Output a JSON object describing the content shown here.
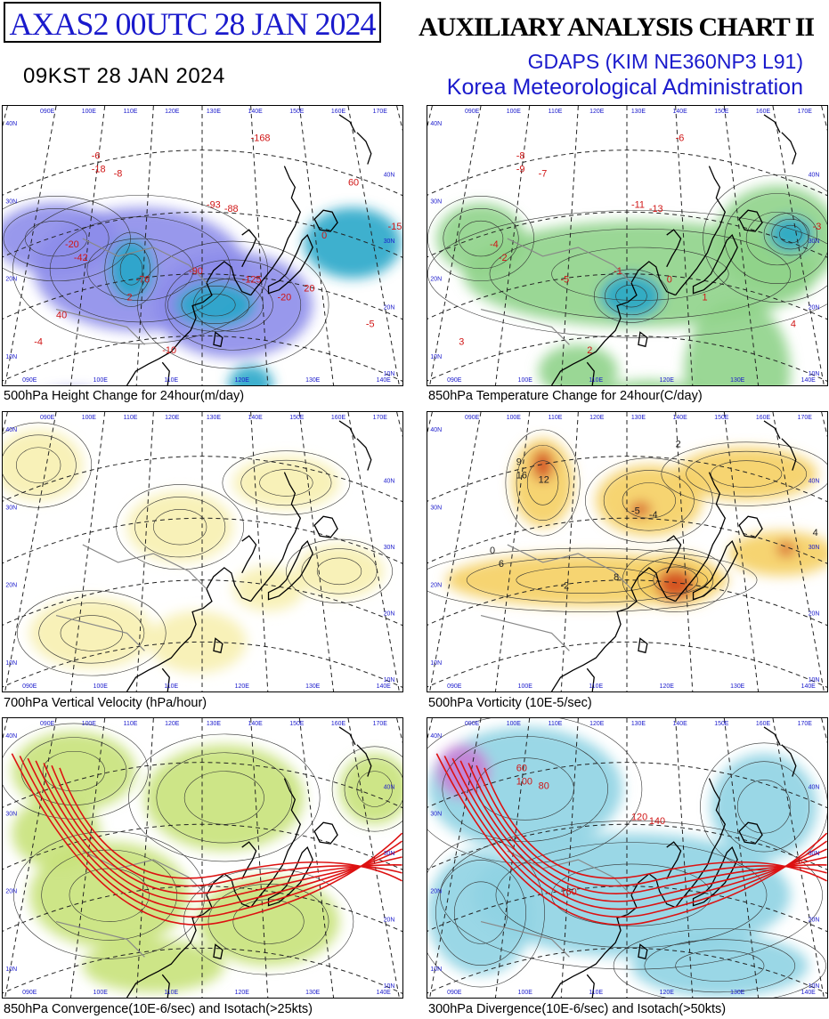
{
  "header": {
    "product_id": "AXAS2  00UTC 28 JAN 2024",
    "local_time": "09KST 28 JAN 2024",
    "chart_title": "AUXILIARY ANALYSIS CHART II",
    "model": "GDAPS (KIM NE360NP3 L91)",
    "organization": "Korea Meteorological Administration"
  },
  "panels": [
    {
      "caption": "500hPa Height Change for 24hour(m/day)",
      "lon_labels": [
        "090E",
        "100E",
        "110E",
        "120E",
        "130E",
        "140E",
        "150E",
        "160E",
        "170E"
      ],
      "lat_labels": [
        "40N",
        "30N",
        "20N",
        "10N"
      ],
      "labels": [
        "-6",
        "-8",
        "-18",
        "-93",
        "-88",
        "-76",
        "-20",
        "-168",
        "-15",
        "-42",
        "-90",
        "-125",
        "-20",
        "-10",
        "-4",
        "-5",
        "0",
        "2",
        "20",
        "40",
        "60"
      ]
    },
    {
      "caption": "850hPa Temperature Change for 24hour(C/day)",
      "lon_labels": [
        "090E",
        "100E",
        "110E",
        "120E",
        "130E",
        "140E",
        "150E",
        "160E",
        "170E"
      ],
      "lat_labels": [
        "40N",
        "30N",
        "20N",
        "10N"
      ],
      "labels": [
        "-8",
        "-7",
        "-9",
        "-11",
        "-13",
        "-5",
        "-4",
        "-6",
        "-3",
        "-2",
        "-1",
        "0",
        "1",
        "2",
        "3",
        "4"
      ]
    },
    {
      "caption": "700hPa Vertical Velocity (hPa/hour)",
      "lon_labels": [
        "090E",
        "100E",
        "110E",
        "120E",
        "130E",
        "140E",
        "150E",
        "160E",
        "170E"
      ],
      "lat_labels": [
        "40N",
        "30N",
        "20N",
        "10N"
      ],
      "labels": []
    },
    {
      "caption": "500hPa Vorticity (10E-5/sec)",
      "lon_labels": [
        "090E",
        "100E",
        "110E",
        "120E",
        "130E",
        "140E",
        "150E",
        "160E",
        "170E"
      ],
      "lat_labels": [
        "40N",
        "30N",
        "20N",
        "10N"
      ],
      "labels": [
        "9",
        "12",
        "16",
        "-5",
        "-4",
        "-2",
        "0",
        "2",
        "4",
        "6",
        "8"
      ]
    },
    {
      "caption": "850hPa Convergence(10E-6/sec) and Isotach(>25kts)",
      "lon_labels": [
        "090E",
        "100E",
        "110E",
        "120E",
        "130E",
        "140E",
        "150E",
        "160E",
        "170E"
      ],
      "lat_labels": [
        "40N",
        "30N",
        "20N",
        "10N"
      ],
      "labels": []
    },
    {
      "caption": "300hPa Divergence(10E-6/sec) and Isotach(>50kts)",
      "lon_labels": [
        "090E",
        "100E",
        "110E",
        "120E",
        "130E",
        "140E",
        "150E",
        "160E",
        "170E"
      ],
      "lat_labels": [
        "40N",
        "30N",
        "20N",
        "10N"
      ],
      "labels": [
        "60",
        "80",
        "100",
        "120",
        "140",
        "160"
      ]
    }
  ],
  "colors": {
    "title_blue": "#1a1acc",
    "height_fall": "#8d8dea",
    "height_fall_strong": "#27a7c9",
    "temp_fall": "#8fd38a",
    "temp_fall_strong": "#27a7c9",
    "vvel_fill": "#f7f0b0",
    "vorticity_fill": "#f5cf63",
    "vorticity_strong": "#d2481d",
    "convergence_fill": "#c8e27a",
    "divergence_fill": "#8fd3e3",
    "isotach": "#dd1111"
  },
  "icons": {
    "coastline": "coastline-icon",
    "lat_lon_grid": "graticule-icon"
  }
}
